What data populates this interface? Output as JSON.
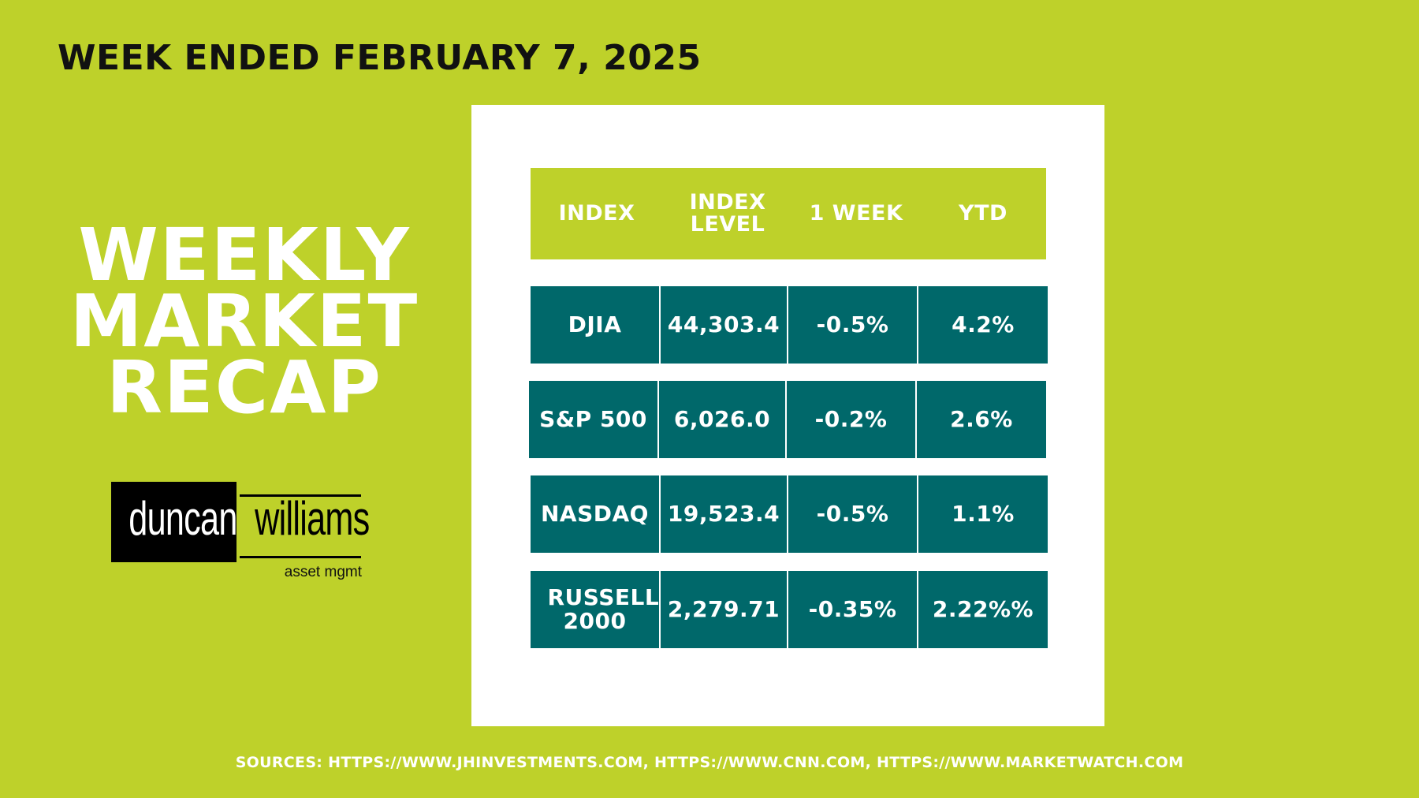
{
  "header": {
    "title": "WEEK ENDED FEBRUARY 7, 2025"
  },
  "hero": {
    "line1": "WEEKLY",
    "line2": "MARKET",
    "line3": "RECAP"
  },
  "logo": {
    "word1": "duncan",
    "word2": "williams",
    "tagline": "asset mgmt"
  },
  "table": {
    "columns": [
      "INDEX",
      "INDEX LEVEL",
      "1 WEEK",
      "YTD"
    ],
    "rows": [
      {
        "index": "DJIA",
        "level": "44,303.4",
        "week": "-0.5%",
        "ytd": "4.2%"
      },
      {
        "index": "S&P 500",
        "level": "6,026.0",
        "week": "-0.2%",
        "ytd": "2.6%"
      },
      {
        "index": "NASDAQ",
        "level": "19,523.4",
        "week": "-0.5%",
        "ytd": "1.1%"
      },
      {
        "index": "RUSSELL 2000",
        "level": "2,279.71",
        "week": "-0.35%",
        "ytd": "2.22%%"
      }
    ]
  },
  "footer": {
    "sources": "SOURCES: HTTPS://WWW.JHINVESTMENTS.COM, HTTPS://WWW.CNN.COM, HTTPS://WWW.MARKETWATCH.COM"
  },
  "colors": {
    "background": "#bed12a",
    "table_cell": "#00686a",
    "panel": "#ffffff"
  }
}
